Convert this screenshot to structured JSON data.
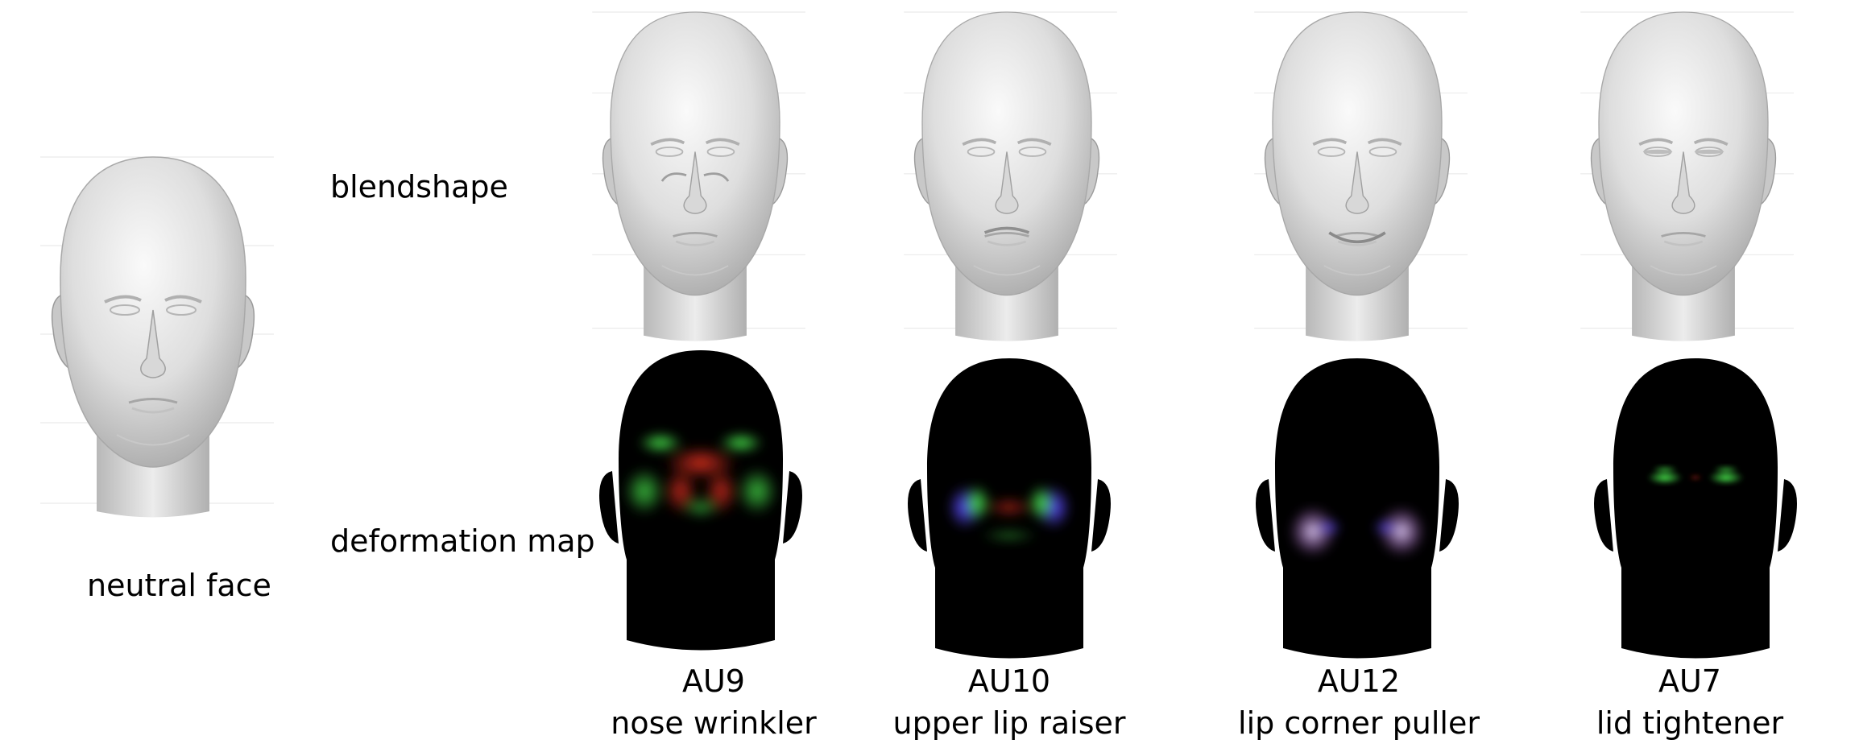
{
  "row_labels": {
    "blendshape": "blendshape",
    "deformation_map": "deformation map",
    "neutral": "neutral face"
  },
  "columns": [
    {
      "code": "AU9",
      "name": "nose wrinkler"
    },
    {
      "code": "AU10",
      "name": "upper lip raiser"
    },
    {
      "code": "AU12",
      "name": "lip corner puller"
    },
    {
      "code": "AU7",
      "name": "lid tightener"
    }
  ],
  "colors": {
    "face_light": "#f2f2f2",
    "face_shade": "#b9b9b9",
    "map_background": "#000000",
    "map_green": "#36d43a",
    "map_red": "#d02a1e",
    "map_blue": "#4a3cf0",
    "map_magenta": "#b35cd6"
  }
}
